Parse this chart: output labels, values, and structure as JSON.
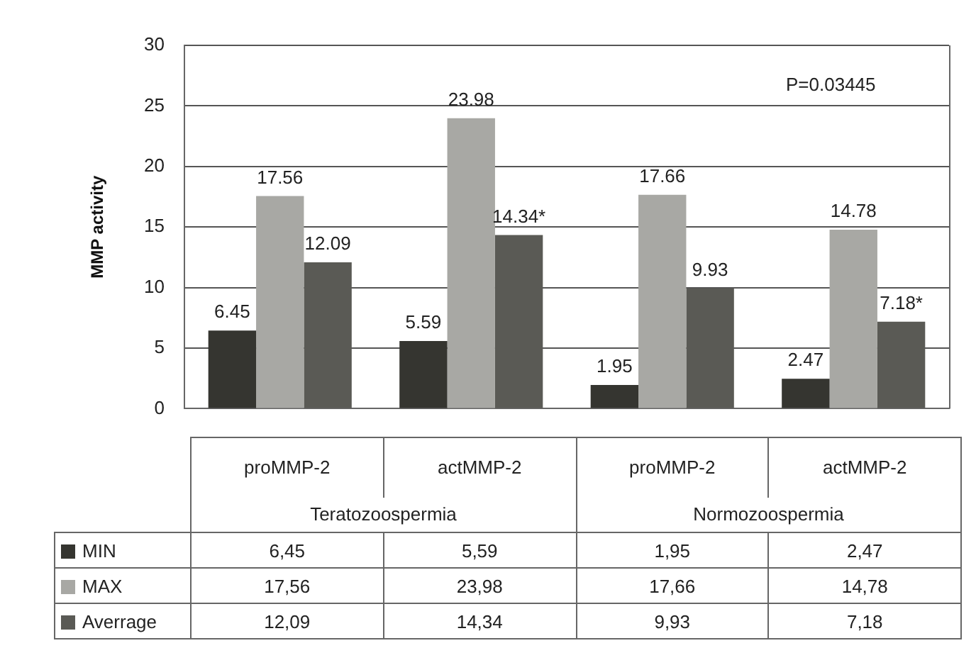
{
  "chart_data": {
    "type": "bar",
    "ylabel": "MMP activity",
    "categories": [
      "proMMP-2",
      "actMMP-2",
      "proMMP-2",
      "actMMP-2"
    ],
    "series": [
      {
        "name": "MIN",
        "color": "#353530",
        "values": [
          6.45,
          5.59,
          1.95,
          2.47
        ],
        "value_labels": [
          "6.45",
          "5.59",
          "1.95",
          "2.47"
        ]
      },
      {
        "name": "MAX",
        "color": "#a8a8a4",
        "values": [
          17.56,
          23.98,
          17.66,
          14.78
        ],
        "value_labels": [
          "17.56",
          "23.98",
          "17.66",
          "14.78"
        ]
      },
      {
        "name": "Averrage",
        "color": "#5a5a55",
        "values": [
          12.09,
          14.34,
          9.93,
          7.18
        ],
        "value_labels": [
          "12.09",
          "14.34*",
          "9.93",
          "7.18*"
        ]
      }
    ],
    "ylim": [
      0,
      30
    ],
    "yticks": [
      0,
      5,
      10,
      15,
      20,
      25,
      30
    ],
    "grid": "y",
    "legend": "bottom",
    "annotations": [
      "Teratozoospermia",
      "Normozoospermia",
      "P=0.03445",
      "6,45",
      "5,59",
      "1,95",
      "2,47",
      "17,56",
      "23,98",
      "17,66",
      "14,78",
      "12,09",
      "14,34",
      "9,93",
      "7,18"
    ]
  }
}
